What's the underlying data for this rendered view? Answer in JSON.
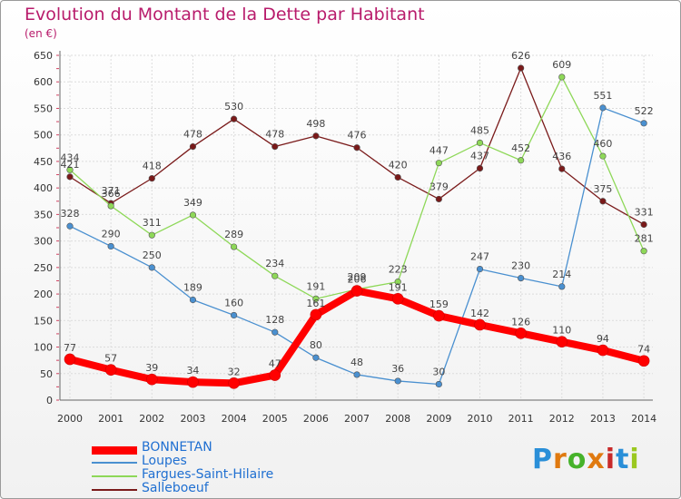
{
  "title": "Evolution du Montant de la Dette par Habitant",
  "unit": "(en €)",
  "logo": {
    "text": "Proxiti",
    "colors": [
      "#2a8fd8",
      "#e07a10",
      "#46b22a",
      "#e07a10",
      "#c82a2a",
      "#2a8fd8",
      "#9bc820"
    ]
  },
  "chart_data": {
    "type": "line",
    "x": [
      "2000",
      "2001",
      "2002",
      "2003",
      "2004",
      "2005",
      "2006",
      "2007",
      "2008",
      "2009",
      "2010",
      "2011",
      "2012",
      "2013",
      "2014"
    ],
    "ylim": [
      0,
      650
    ],
    "yticks": [
      0,
      50,
      100,
      150,
      200,
      250,
      300,
      350,
      400,
      450,
      500,
      550,
      600,
      650
    ],
    "grid": true,
    "legend_position": "bottom-left",
    "series": [
      {
        "name": "BONNETAN",
        "color": "#ff0000",
        "values": [
          77,
          57,
          39,
          34,
          32,
          47,
          161,
          206,
          191,
          159,
          142,
          126,
          110,
          94,
          74
        ]
      },
      {
        "name": "Loupes",
        "color": "#4a90d0",
        "values": [
          328,
          290,
          250,
          189,
          160,
          128,
          80,
          48,
          36,
          30,
          247,
          230,
          214,
          551,
          522
        ]
      },
      {
        "name": "Fargues-Saint-Hilaire",
        "color": "#8ed858",
        "values": [
          434,
          366,
          311,
          349,
          289,
          234,
          191,
          209,
          223,
          447,
          485,
          452,
          609,
          460,
          281
        ]
      },
      {
        "name": "Salleboeuf",
        "color": "#7a1a1a",
        "values": [
          421,
          371,
          418,
          478,
          530,
          478,
          498,
          476,
          420,
          379,
          437,
          626,
          436,
          375,
          331
        ]
      }
    ]
  }
}
